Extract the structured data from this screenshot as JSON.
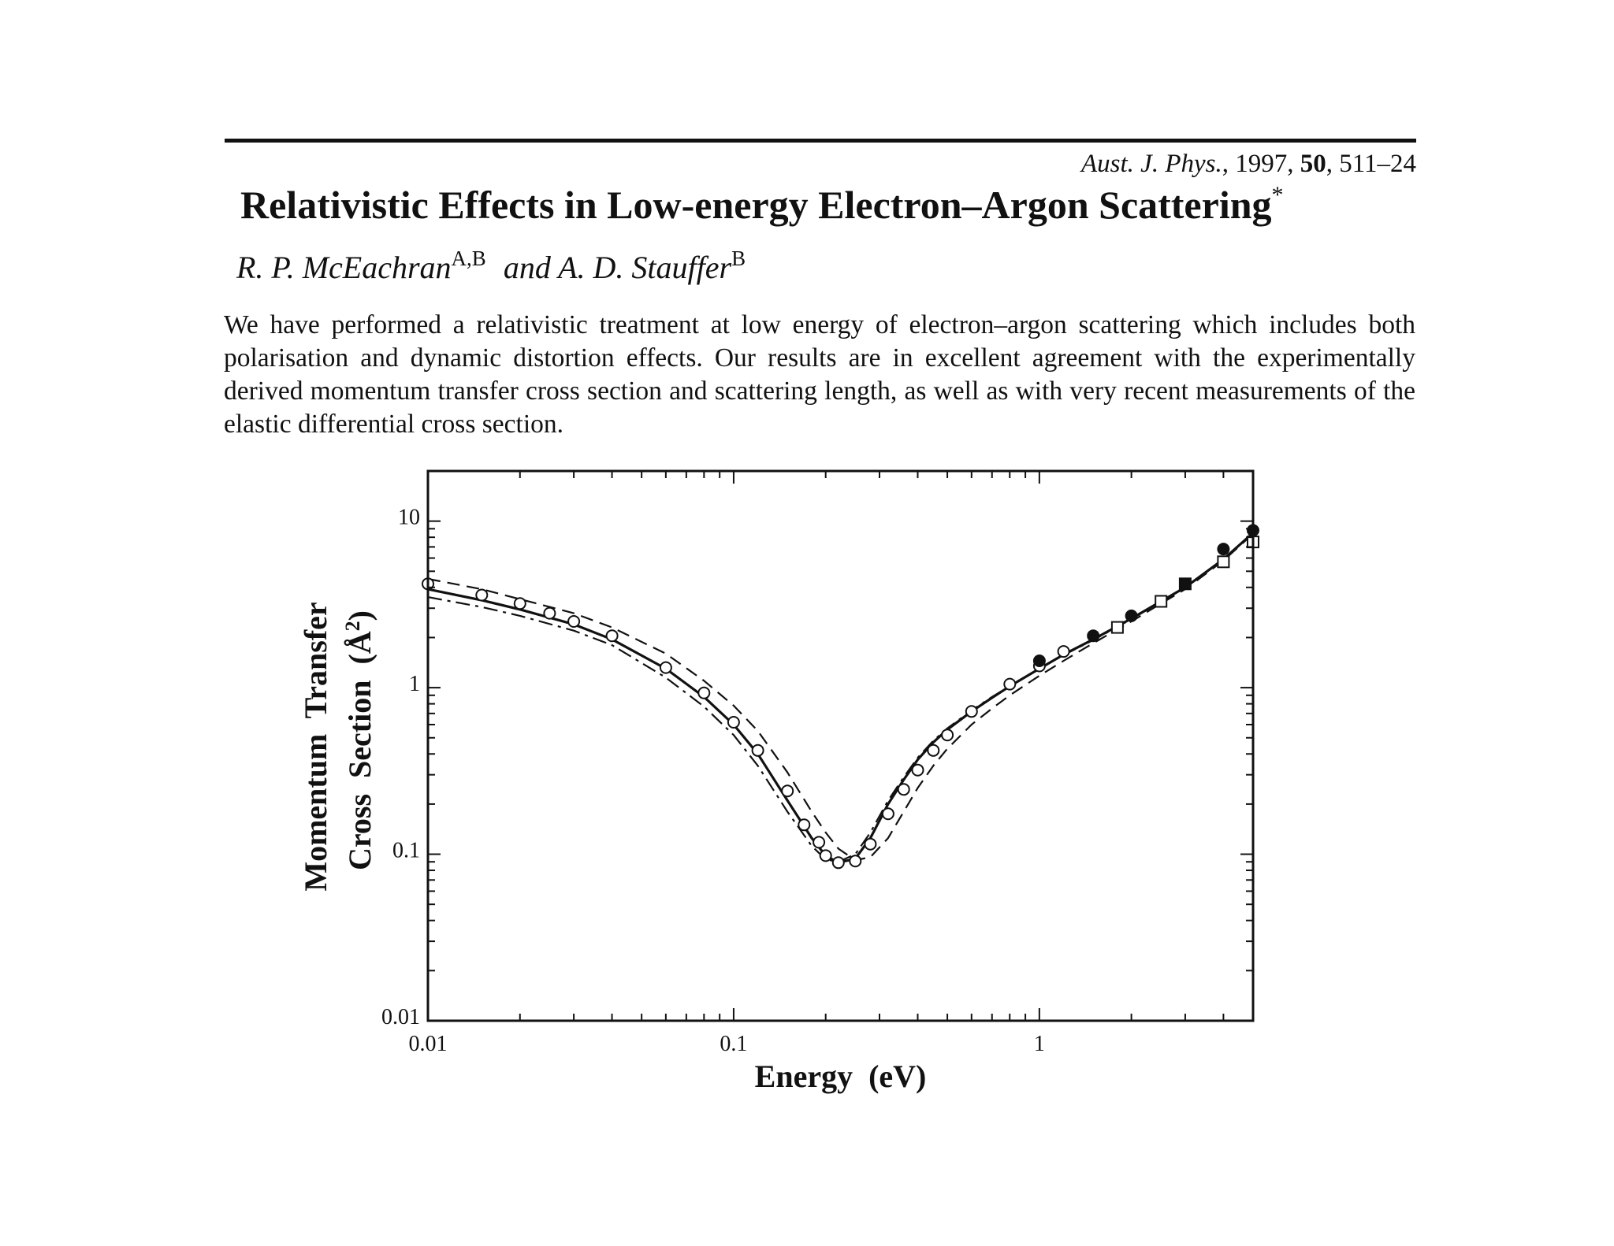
{
  "header": {
    "journal": "Aust. J. Phys.",
    "sep1": ", ",
    "year": "1997",
    "sep2": ", ",
    "volume": "50",
    "sep3": ", ",
    "pages": "511–24"
  },
  "title": {
    "text": "Relativistic Effects in Low-energy Electron–Argon Scattering",
    "footnote_mark": "*"
  },
  "authors": {
    "author1": "R. P. McEachran",
    "author1_affil": "A,B",
    "conjunction": "and",
    "author2": "A. D. Stauffer",
    "author2_affil": "B"
  },
  "abstract": "We have performed a relativistic treatment at low energy of electron–argon scattering which includes both polarisation and dynamic distortion effects. Our results are in excellent agreement with the experimentally derived momentum transfer cross section and scattering length, as well as with very recent measurements of the elastic differential cross section.",
  "chart_data": {
    "type": "line",
    "title": "",
    "xlabel": "Energy  (eV)",
    "ylabel_line1": "Momentum  Transfer",
    "ylabel_line2": "Cross  Section  (Å",
    "ylabel_sup": "2",
    "ylabel_close": ")",
    "x_scale": "log",
    "y_scale": "log",
    "xlim": [
      0.01,
      5
    ],
    "ylim": [
      0.01,
      20
    ],
    "x_ticks": [
      {
        "value": 0.01,
        "label": "0.01"
      },
      {
        "value": 0.1,
        "label": "0.1"
      },
      {
        "value": 1,
        "label": "1"
      }
    ],
    "y_ticks": [
      {
        "value": 0.01,
        "label": "0.01"
      },
      {
        "value": 0.1,
        "label": "0.1"
      },
      {
        "value": 1,
        "label": "1"
      },
      {
        "value": 10,
        "label": "10"
      }
    ],
    "grid": false,
    "legend": "none",
    "series": [
      {
        "style": "solid",
        "x": [
          0.01,
          0.015,
          0.02,
          0.03,
          0.04,
          0.06,
          0.08,
          0.1,
          0.12,
          0.15,
          0.18,
          0.2,
          0.22,
          0.25,
          0.28,
          0.32,
          0.36,
          0.4,
          0.45,
          0.5,
          0.6,
          0.7,
          0.8,
          1.0,
          1.2,
          1.5,
          2.0,
          2.5,
          3.0,
          4.0,
          5.0
        ],
        "y": [
          3.9,
          3.35,
          2.95,
          2.4,
          1.95,
          1.3,
          0.88,
          0.6,
          0.4,
          0.21,
          0.125,
          0.098,
          0.089,
          0.094,
          0.125,
          0.2,
          0.28,
          0.37,
          0.47,
          0.56,
          0.72,
          0.87,
          1.02,
          1.3,
          1.58,
          1.95,
          2.6,
          3.3,
          4.0,
          5.9,
          8.5
        ]
      },
      {
        "style": "dashed",
        "x": [
          0.01,
          0.015,
          0.02,
          0.03,
          0.04,
          0.06,
          0.08,
          0.1,
          0.12,
          0.15,
          0.18,
          0.2,
          0.22,
          0.25,
          0.28,
          0.32,
          0.36,
          0.4,
          0.45,
          0.5,
          0.6,
          0.7,
          0.8,
          1.0,
          1.2,
          1.5,
          2.0,
          2.5,
          3.0,
          4.0,
          5.0
        ],
        "y": [
          4.5,
          3.9,
          3.4,
          2.8,
          2.3,
          1.6,
          1.1,
          0.78,
          0.55,
          0.31,
          0.18,
          0.135,
          0.108,
          0.092,
          0.096,
          0.125,
          0.18,
          0.25,
          0.34,
          0.43,
          0.6,
          0.75,
          0.9,
          1.18,
          1.45,
          1.85,
          2.5,
          3.2,
          3.9,
          5.8,
          8.4
        ]
      },
      {
        "style": "dashdot",
        "x": [
          0.01,
          0.015,
          0.02,
          0.03,
          0.04,
          0.06,
          0.08,
          0.1,
          0.12,
          0.15,
          0.18,
          0.2,
          0.22,
          0.25,
          0.28,
          0.32,
          0.36,
          0.4,
          0.45,
          0.5,
          0.6,
          0.7,
          0.8,
          1.0,
          1.2,
          1.5,
          2.0,
          2.5,
          3.0,
          4.0,
          5.0
        ],
        "y": [
          3.5,
          3.05,
          2.7,
          2.2,
          1.8,
          1.15,
          0.77,
          0.52,
          0.34,
          0.18,
          0.112,
          0.093,
          0.09,
          0.1,
          0.135,
          0.21,
          0.29,
          0.38,
          0.48,
          0.57,
          0.73,
          0.88,
          1.02,
          1.3,
          1.57,
          1.93,
          2.58,
          3.28,
          3.98,
          5.9,
          8.5
        ]
      }
    ],
    "markers": [
      {
        "symbol": "open-circle",
        "x": [
          0.01,
          0.015,
          0.02,
          0.025,
          0.03,
          0.04,
          0.06,
          0.08,
          0.1,
          0.12,
          0.15,
          0.17,
          0.19,
          0.2,
          0.22,
          0.25,
          0.28,
          0.32,
          0.36,
          0.4,
          0.45,
          0.5,
          0.6,
          0.8,
          1.0,
          1.2
        ],
        "y": [
          4.2,
          3.6,
          3.2,
          2.8,
          2.5,
          2.05,
          1.32,
          0.93,
          0.62,
          0.42,
          0.24,
          0.15,
          0.118,
          0.098,
          0.089,
          0.091,
          0.115,
          0.175,
          0.245,
          0.32,
          0.42,
          0.52,
          0.72,
          1.05,
          1.35,
          1.65
        ]
      },
      {
        "symbol": "filled-circle",
        "x": [
          1.0,
          1.5,
          2.0,
          4.0,
          5.0
        ],
        "y": [
          1.45,
          2.05,
          2.7,
          6.8,
          8.8
        ]
      },
      {
        "symbol": "open-square",
        "x": [
          1.8,
          2.5,
          4.0,
          5.0
        ],
        "y": [
          2.3,
          3.3,
          5.7,
          7.5
        ]
      },
      {
        "symbol": "filled-square",
        "x": [
          3.0
        ],
        "y": [
          4.2
        ]
      }
    ]
  }
}
